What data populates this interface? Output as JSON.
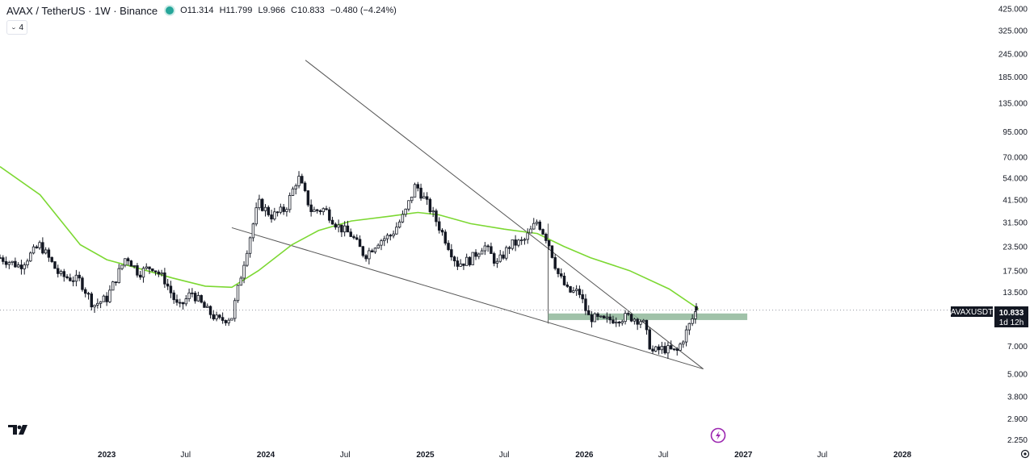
{
  "header": {
    "symbol": "AVAX / TetherUS · 1W · Binance",
    "open": "O11.314",
    "high": "H11.799",
    "low": "L9.966",
    "close": "C10.833",
    "change": "−0.480 (−4.24%)",
    "indicator_count": "4"
  },
  "price_label": {
    "ticker": "AVAXUSDT",
    "price": "10.833",
    "countdown": "1d 12h"
  },
  "colors": {
    "up": "#ffffff",
    "down": "#131722",
    "ma": "#7cd832",
    "zone": "#8fb79a",
    "trend": "#555555"
  },
  "chart_data": {
    "type": "candlestick",
    "title": "",
    "xlabel": "",
    "ylabel": "",
    "y_scale": "log",
    "ylim": [
      2.1,
      470
    ],
    "xlim": [
      "2022-05-01",
      "2028-08-01"
    ],
    "x_ticks": [
      {
        "date": "2023-01-01",
        "label": "2023"
      },
      {
        "date": "2023-07-01",
        "label": "Jul"
      },
      {
        "date": "2024-01-01",
        "label": "2024"
      },
      {
        "date": "2024-07-01",
        "label": "Jul"
      },
      {
        "date": "2025-01-01",
        "label": "2025"
      },
      {
        "date": "2025-07-01",
        "label": "Jul"
      },
      {
        "date": "2026-01-01",
        "label": "2026"
      },
      {
        "date": "2026-07-01",
        "label": "Jul"
      },
      {
        "date": "2027-01-01",
        "label": "2027"
      },
      {
        "date": "2027-07-01",
        "label": "Jul"
      },
      {
        "date": "2028-01-01",
        "label": "2028"
      }
    ],
    "y_ticks": [
      {
        "value": 425,
        "label": "425.000"
      },
      {
        "value": 325,
        "label": "325.000"
      },
      {
        "value": 245,
        "label": "245.000"
      },
      {
        "value": 185,
        "label": "185.000"
      },
      {
        "value": 135,
        "label": "135.000"
      },
      {
        "value": 95,
        "label": "95.000"
      },
      {
        "value": 70,
        "label": "70.000"
      },
      {
        "value": 54,
        "label": "54.000"
      },
      {
        "value": 41.5,
        "label": "41.500"
      },
      {
        "value": 31.5,
        "label": "31.500"
      },
      {
        "value": 23.5,
        "label": "23.500"
      },
      {
        "value": 17.5,
        "label": "17.500"
      },
      {
        "value": 13.5,
        "label": "13.500"
      },
      {
        "value": 7.0,
        "label": "7.000"
      },
      {
        "value": 5.0,
        "label": "5.000"
      },
      {
        "value": 3.8,
        "label": "3.800"
      },
      {
        "value": 2.9,
        "label": "2.900"
      },
      {
        "value": 2.25,
        "label": "2.250"
      }
    ],
    "price_path": [
      [
        "2022-05-01",
        20.5
      ],
      [
        "2022-06-15",
        18.5
      ],
      [
        "2022-08-01",
        24.0
      ],
      [
        "2022-09-15",
        16.5
      ],
      [
        "2022-11-01",
        15.5
      ],
      [
        "2022-12-01",
        11.5
      ],
      [
        "2023-01-01",
        12.5
      ],
      [
        "2023-02-15",
        21.0
      ],
      [
        "2023-03-15",
        17.0
      ],
      [
        "2023-04-15",
        18.5
      ],
      [
        "2023-05-15",
        15.5
      ],
      [
        "2023-06-15",
        11.0
      ],
      [
        "2023-07-15",
        13.5
      ],
      [
        "2023-08-15",
        11.0
      ],
      [
        "2023-09-15",
        9.5
      ],
      [
        "2023-10-15",
        10.0
      ],
      [
        "2023-11-15",
        21.0
      ],
      [
        "2023-12-15",
        40.0
      ],
      [
        "2024-01-15",
        34.0
      ],
      [
        "2024-02-15",
        37.0
      ],
      [
        "2024-03-15",
        55.0
      ],
      [
        "2024-04-15",
        36.0
      ],
      [
        "2024-05-15",
        37.0
      ],
      [
        "2024-06-15",
        30.0
      ],
      [
        "2024-07-15",
        27.0
      ],
      [
        "2024-08-15",
        21.0
      ],
      [
        "2024-09-15",
        25.0
      ],
      [
        "2024-10-15",
        27.0
      ],
      [
        "2024-11-15",
        35.0
      ],
      [
        "2024-12-10",
        50.0
      ],
      [
        "2025-01-15",
        36.0
      ],
      [
        "2025-02-15",
        26.0
      ],
      [
        "2025-03-15",
        19.0
      ],
      [
        "2025-04-15",
        20.0
      ],
      [
        "2025-05-15",
        24.0
      ],
      [
        "2025-06-15",
        19.0
      ],
      [
        "2025-07-15",
        24.0
      ],
      [
        "2025-08-15",
        25.0
      ],
      [
        "2025-09-15",
        32.0
      ],
      [
        "2025-10-10",
        25.0
      ],
      [
        "2025-11-01",
        17.0
      ],
      [
        "2025-11-25",
        13.5
      ],
      [
        "2025-12-20",
        13.5
      ],
      [
        "2026-01-10",
        10.0
      ],
      [
        "2026-02-15",
        9.5
      ],
      [
        "2026-03-15",
        9.8
      ],
      [
        "2026-04-15",
        10.0
      ],
      [
        "2026-05-15",
        9.5
      ],
      [
        "2026-06-05",
        6.5
      ],
      [
        "2026-07-01",
        6.8
      ],
      [
        "2026-08-01",
        6.5
      ],
      [
        "2026-08-25",
        8.5
      ],
      [
        "2026-09-15",
        10.8
      ]
    ],
    "last_bar": {
      "date": "2026-09-15",
      "open": 11.314,
      "high": 11.799,
      "low": 9.966,
      "close": 10.833
    },
    "series": [
      {
        "type": "line",
        "points": [
          [
            "2022-05-01",
            62
          ],
          [
            "2022-08-01",
            44
          ],
          [
            "2022-11-01",
            24
          ],
          [
            "2023-01-01",
            20
          ],
          [
            "2023-03-15",
            18
          ],
          [
            "2023-06-01",
            16
          ],
          [
            "2023-08-15",
            14.5
          ],
          [
            "2023-10-15",
            14.3
          ],
          [
            "2023-12-15",
            17.5
          ],
          [
            "2024-03-01",
            24
          ],
          [
            "2024-05-01",
            28.5
          ],
          [
            "2024-07-15",
            32
          ],
          [
            "2024-10-15",
            34
          ],
          [
            "2024-12-15",
            35.5
          ],
          [
            "2025-02-01",
            34.5
          ],
          [
            "2025-04-15",
            31
          ],
          [
            "2025-07-01",
            29
          ],
          [
            "2025-09-15",
            27.5
          ],
          [
            "2025-11-15",
            23.5
          ],
          [
            "2026-01-15",
            20.5
          ],
          [
            "2026-04-15",
            17.5
          ],
          [
            "2026-07-15",
            14
          ],
          [
            "2026-09-20",
            11
          ]
        ]
      }
    ],
    "annotations": [
      {
        "type": "trendline",
        "from": [
          "2024-04-01",
          226
        ],
        "to": [
          "2026-10-01",
          5.3
        ]
      },
      {
        "type": "trendline",
        "from": [
          "2023-10-15",
          29.5
        ],
        "to": [
          "2026-10-01",
          5.3
        ]
      },
      {
        "type": "vertical_line",
        "date": "2025-10-10",
        "range": [
          9.2,
          31
        ]
      },
      {
        "type": "zone",
        "from": "2025-10-10",
        "to": "2027-01-10",
        "low": 9.6,
        "high": 10.4
      },
      {
        "type": "hline",
        "value": 10.833,
        "style": "dotted"
      }
    ]
  }
}
